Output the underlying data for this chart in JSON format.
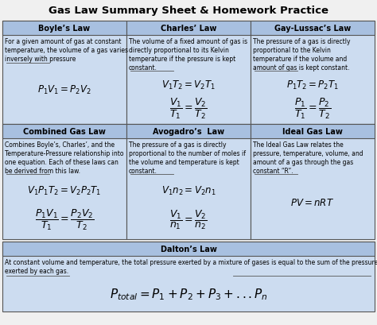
{
  "title": "Gas Law Summary Sheet & Homework Practice",
  "bg_color": "#f0f0f0",
  "header_bg": "#a8c0e0",
  "cell_bg": "#ccdcf0",
  "border_color": "#555555",
  "laws": [
    {
      "name": "Boyle’s Law",
      "desc": "For a given amount of gas at constant\ntemperature, the volume of a gas varies\ninversely with pressure",
      "eq1": "$P_1V_1 = P_2V_2$",
      "eq2": null
    },
    {
      "name": "Charles’ Law",
      "desc": "The volume of a fixed amount of gas is\ndirectly proportional to its Kelvin\ntemperature if the pressure is kept\nconstant.",
      "eq1": "$V_1T_2 = V_2T_1$",
      "eq2": "$\\dfrac{V_1}{T_1} = \\dfrac{V_2}{T_2}$"
    },
    {
      "name": "Gay-Lussac’s Law",
      "desc": "The pressure of a gas is directly\nproportional to the Kelvin\ntemperature if the volume and\namount of gas is kept constant.",
      "eq1": "$P_1T_2 = P_2T_1$",
      "eq2": "$\\dfrac{P_1}{T_1} = \\dfrac{P_2}{T_2}$"
    },
    {
      "name": "Combined Gas Law",
      "desc": "Combines Boyle’s, Charles’, and the\nTemperature-Pressure relationship into\none equation. Each of these laws can\nbe derived from this law.",
      "eq1": "$V_1P_1T_2 = V_2P_2T_1$",
      "eq2": "$\\dfrac{P_1V_1}{T_1} = \\dfrac{P_2V_2}{T_2}$"
    },
    {
      "name": "Avogadro’s  Law",
      "desc": "The pressure of a gas is directly\nproportional to the number of moles if\nthe volume and temperature is kept\nconstant.",
      "eq1": "$V_1n_2 = V_2n_1$",
      "eq2": "$\\dfrac{V_1}{n_1} = \\dfrac{V_2}{n_2}$"
    },
    {
      "name": "Ideal Gas Law",
      "desc": "The Ideal Gas Law relates the\npressure, temperature, volume, and\namount of a gas through the gas\nconstant “R”.",
      "eq1": "$PV = nRT$",
      "eq2": null
    }
  ],
  "dalton": {
    "name": "Dalton’s Law",
    "desc": "At constant volume and temperature, the total pressure exerted by a mixture of gases is equal to the sum of the pressures\nexerted by each gas.",
    "eq": "$P_{total} = P_1 + P_2 + P_3 + ...P_n$"
  }
}
